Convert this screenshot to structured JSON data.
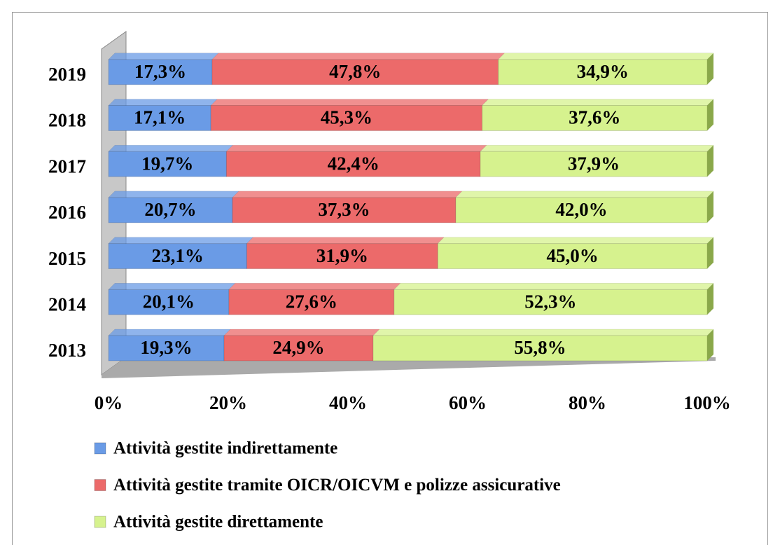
{
  "chart_data": {
    "type": "stacked_bar_horizontal",
    "categories": [
      "2013",
      "2014",
      "2015",
      "2016",
      "2017",
      "2018",
      "2019"
    ],
    "series": [
      {
        "name": "Attività gestite indirettamente",
        "color": "#6a9be6",
        "values": [
          19.3,
          20.1,
          23.1,
          20.7,
          19.7,
          17.1,
          17.3
        ],
        "value_labels": [
          "19,3%",
          "20,1%",
          "23,1%",
          "20,7%",
          "19,7%",
          "17,1%",
          "17,3%"
        ]
      },
      {
        "name": "Attività gestite tramite OICR/OICVM e polizze assicurative",
        "color": "#ec6a6a",
        "values": [
          24.9,
          27.6,
          31.9,
          37.3,
          42.4,
          45.3,
          47.8
        ],
        "value_labels": [
          "24,9%",
          "27,6%",
          "31,9%",
          "37,3%",
          "42,4%",
          "45,3%",
          "47,8%"
        ]
      },
      {
        "name": "Attività gestite direttamente",
        "color": "#d6f28e",
        "values": [
          55.8,
          52.3,
          45.0,
          42.0,
          37.9,
          37.6,
          34.9
        ],
        "value_labels": [
          "55,8%",
          "52,3%",
          "45,0%",
          "42,0%",
          "37,9%",
          "37,6%",
          "34,9%"
        ]
      }
    ],
    "xlim": [
      0,
      100
    ],
    "xticks": [
      {
        "value": 0,
        "label": "0%"
      },
      {
        "value": 20,
        "label": "20%"
      },
      {
        "value": 40,
        "label": "40%"
      },
      {
        "value": 60,
        "label": "60%"
      },
      {
        "value": 80,
        "label": "80%"
      },
      {
        "value": 100,
        "label": "100%"
      }
    ],
    "legend": "bottom"
  }
}
